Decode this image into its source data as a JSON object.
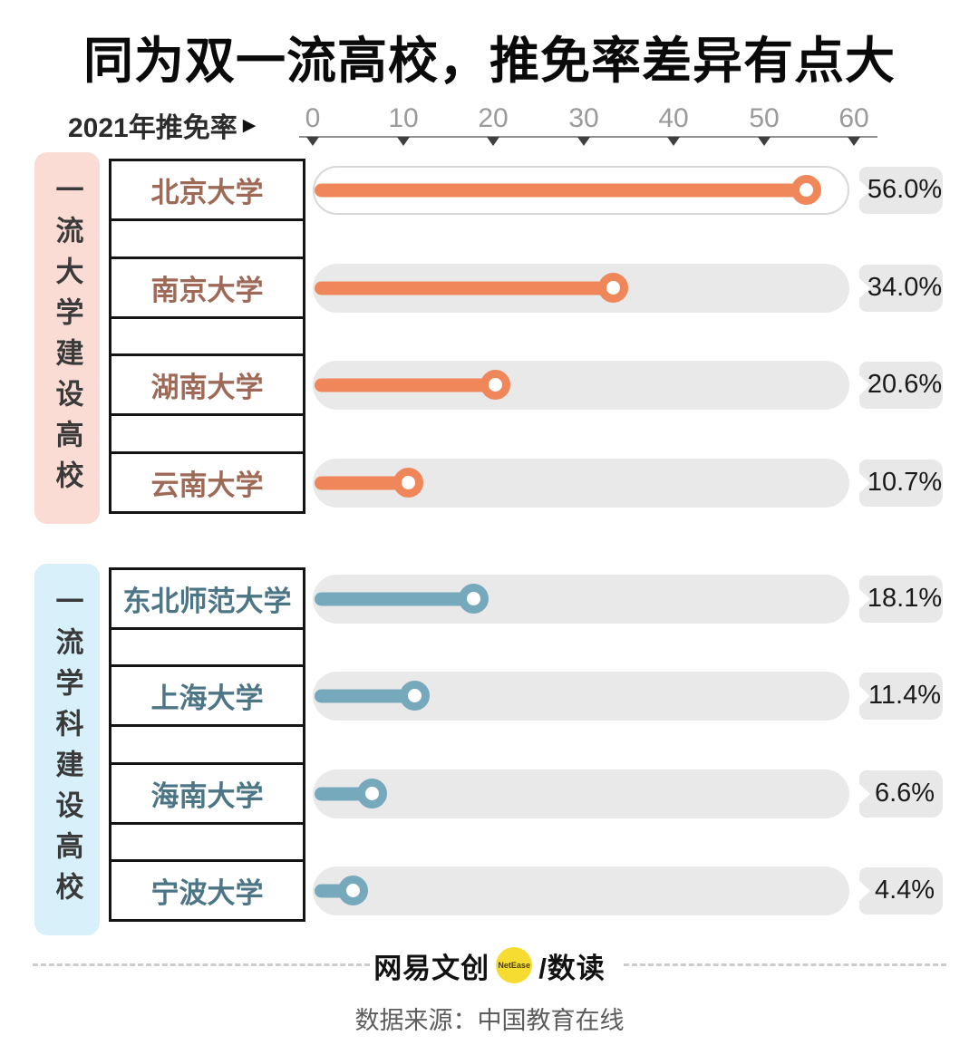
{
  "title": "同为双一流高校，推免率差异有点大",
  "axis": {
    "label": "2021年推免率",
    "arrow": "▶",
    "ticks": [
      "0",
      "10",
      "20",
      "30",
      "40",
      "50",
      "60"
    ]
  },
  "groups": [
    {
      "label": "一流大学建设高校",
      "bar_color": "#F0875A",
      "panel_color": "#FBDCD5",
      "name_color": "#9E6A57",
      "rows": [
        {
          "name": "北京大学",
          "value": 56.0,
          "display": "56.0%",
          "highlight": true
        },
        {
          "name": "南京大学",
          "value": 34.0,
          "display": "34.0%"
        },
        {
          "name": "湖南大学",
          "value": 20.6,
          "display": "20.6%"
        },
        {
          "name": "云南大学",
          "value": 10.7,
          "display": "10.7%"
        }
      ]
    },
    {
      "label": "一流学科建设高校",
      "bar_color": "#77A9BC",
      "panel_color": "#D8F0F9",
      "name_color": "#4C7586",
      "rows": [
        {
          "name": "东北师范大学",
          "value": 18.1,
          "display": "18.1%"
        },
        {
          "name": "上海大学",
          "value": 11.4,
          "display": "11.4%"
        },
        {
          "name": "海南大学",
          "value": 6.6,
          "display": "6.6%"
        },
        {
          "name": "宁波大学",
          "value": 4.4,
          "display": "4.4%"
        }
      ]
    }
  ],
  "footer": {
    "brand": "网易文创",
    "brand_badge": "NetEase",
    "brand_suffix": "/数读",
    "source": "数据来源：中国教育在线"
  },
  "chart_data": {
    "type": "bar",
    "orientation": "horizontal",
    "title": "同为双一流高校，推免率差异有点大",
    "xlabel": "2021年推免率",
    "xlim": [
      0,
      60
    ],
    "x_ticks": [
      0,
      10,
      20,
      30,
      40,
      50,
      60
    ],
    "grid": false,
    "legend_position": "left-panels",
    "series": [
      {
        "name": "一流大学建设高校",
        "color": "#F0875A",
        "categories": [
          "北京大学",
          "南京大学",
          "湖南大学",
          "云南大学"
        ],
        "values": [
          56.0,
          34.0,
          20.6,
          10.7
        ],
        "value_labels": [
          "56.0%",
          "34.0%",
          "20.6%",
          "10.7%"
        ]
      },
      {
        "name": "一流学科建设高校",
        "color": "#77A9BC",
        "categories": [
          "东北师范大学",
          "上海大学",
          "海南大学",
          "宁波大学"
        ],
        "values": [
          18.1,
          11.4,
          6.6,
          4.4
        ],
        "value_labels": [
          "18.1%",
          "11.4%",
          "6.6%",
          "4.4%"
        ]
      }
    ],
    "source": "数据来源：中国教育在线"
  }
}
